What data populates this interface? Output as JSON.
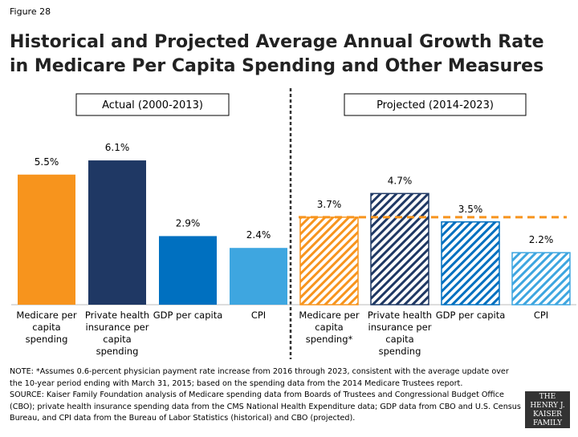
{
  "figure_label": "Figure 28",
  "chart_data": {
    "type": "bar",
    "title": "Historical and Projected Average Annual Growth Rate in Medicare Per Capita Spending and Other Measures",
    "categories": [
      "Medicare per capita spending",
      "Private health insurance per capita spending",
      "GDP per capita",
      "CPI",
      "Medicare per capita spending*",
      "Private health insurance per capita spending",
      "GDP per capita",
      "CPI"
    ],
    "series": [
      {
        "name": "Actual (2000-2013)",
        "pattern": "solid",
        "colors": [
          "#f7941d",
          "#1f3864",
          "#0070c0",
          "#3ea6e0",
          null,
          null,
          null,
          null
        ],
        "values": [
          5.5,
          6.1,
          2.9,
          2.4,
          null,
          null,
          null,
          null
        ],
        "value_labels": [
          "5.5%",
          "6.1%",
          "2.9%",
          "2.4%",
          null,
          null,
          null,
          null
        ]
      },
      {
        "name": "Projected (2014-2023)",
        "pattern": "hatch",
        "colors": [
          null,
          null,
          null,
          null,
          "#f7941d",
          "#1f3864",
          "#0070c0",
          "#3ea6e0"
        ],
        "values": [
          null,
          null,
          null,
          null,
          3.7,
          4.7,
          3.5,
          2.2
        ],
        "value_labels": [
          null,
          null,
          null,
          null,
          "3.7%",
          "4.7%",
          "3.5%",
          "2.2%"
        ]
      }
    ],
    "reference_line": {
      "color": "#f7941d",
      "value": 3.7
    },
    "ylim": [
      0,
      10
    ]
  },
  "note": "NOTE: *Assumes 0.6-percent physician payment rate increase from 2016 through 2023, consistent with the average update over the 10-year period ending with March 31, 2015; based on the spending data from the 2014 Medicare Trustees report.",
  "source": "SOURCE: Kaiser Family Foundation analysis of Medicare spending data from Boards of Trustees and Congressional Budget Office (CBO); private health insurance spending data from the CMS National Health Expenditure data; GDP data from CBO and U.S. Census Bureau, and CPI data from the Bureau of Labor Statistics (historical) and CBO (projected).",
  "logo": "THE HENRY J. KAISER FAMILY FOUNDATION"
}
